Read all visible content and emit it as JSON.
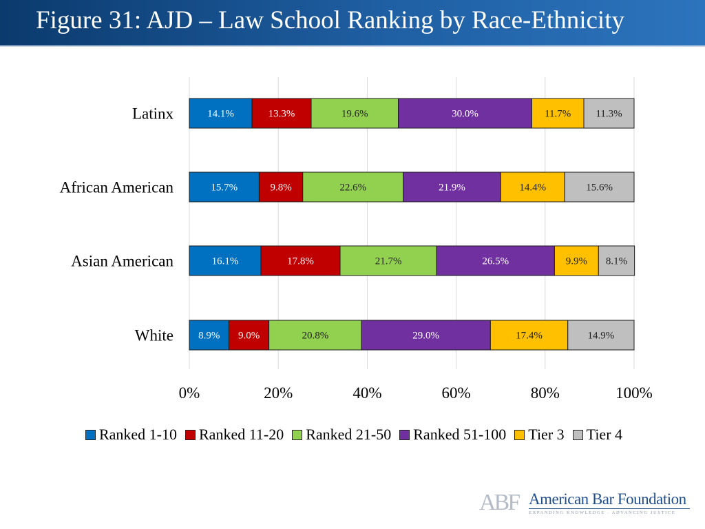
{
  "slide": {
    "title": "Figure 31: AJD – Law School Ranking by Race-Ethnicity"
  },
  "chart_data": {
    "type": "bar",
    "orientation": "horizontal",
    "stacked": "100%",
    "title": "",
    "xlabel": "",
    "ylabel": "",
    "xlim": [
      0,
      100
    ],
    "x_ticks": [
      "0%",
      "20%",
      "40%",
      "60%",
      "80%",
      "100%"
    ],
    "grid": true,
    "legend_position": "bottom",
    "categories": [
      "Latinx",
      "African American",
      "Asian American",
      "White"
    ],
    "series": [
      {
        "name": "Ranked 1-10",
        "color": "#0070C0",
        "values": [
          14.1,
          15.7,
          16.1,
          8.9
        ],
        "labels": [
          "14.1%",
          "15.7%",
          "16.1%",
          "8.9%"
        ]
      },
      {
        "name": "Ranked 11-20",
        "color": "#C00000",
        "values": [
          13.3,
          9.8,
          17.8,
          9.0
        ],
        "labels": [
          "13.3%",
          "9.8%",
          "17.8%",
          "9.0%"
        ]
      },
      {
        "name": "Ranked 21-50",
        "color": "#92D050",
        "values": [
          19.6,
          22.6,
          21.7,
          20.8
        ],
        "labels": [
          "19.6%",
          "22.6%",
          "21.7%",
          "20.8%"
        ]
      },
      {
        "name": "Ranked 51-100",
        "color": "#7030A0",
        "values": [
          30.0,
          21.9,
          26.5,
          29.0
        ],
        "labels": [
          "30.0%",
          "21.9%",
          "26.5%",
          "29.0%"
        ]
      },
      {
        "name": "Tier 3",
        "color": "#FFC000",
        "values": [
          11.7,
          14.4,
          9.9,
          17.4
        ],
        "labels": [
          "11.7%",
          "14.4%",
          "9.9%",
          "17.4%"
        ]
      },
      {
        "name": "Tier 4",
        "color": "#BFBFBF",
        "values": [
          11.3,
          15.6,
          8.1,
          14.9
        ],
        "labels": [
          "11.3%",
          "15.6%",
          "8.1%",
          "14.9%"
        ]
      }
    ]
  },
  "logo": {
    "mark": "ABF",
    "name": "American Bar Foundation",
    "tagline": "EXPANDING KNOWLEDGE · ADVANCING JUSTICE"
  }
}
